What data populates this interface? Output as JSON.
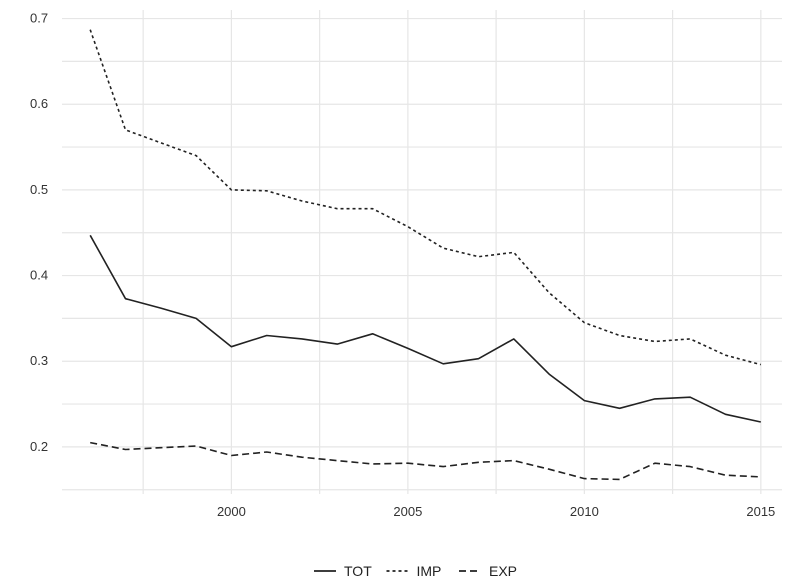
{
  "chart_data": {
    "type": "line",
    "title": "",
    "xlabel": "",
    "ylabel": "",
    "x": [
      1996,
      1997,
      1998,
      1999,
      2000,
      2001,
      2002,
      2003,
      2004,
      2005,
      2006,
      2007,
      2008,
      2009,
      2010,
      2011,
      2012,
      2013,
      2014,
      2015
    ],
    "series": [
      {
        "name": "TOT",
        "style": "solid",
        "values": [
          0.447,
          0.373,
          0.362,
          0.35,
          0.317,
          0.33,
          0.326,
          0.32,
          0.332,
          0.315,
          0.297,
          0.303,
          0.326,
          0.285,
          0.254,
          0.245,
          0.256,
          0.258,
          0.238,
          0.229
        ]
      },
      {
        "name": "IMP",
        "style": "dotted",
        "values": [
          0.687,
          0.57,
          0.555,
          0.54,
          0.5,
          0.499,
          0.487,
          0.478,
          0.478,
          0.457,
          0.432,
          0.422,
          0.427,
          0.38,
          0.345,
          0.33,
          0.323,
          0.326,
          0.307,
          0.296
        ]
      },
      {
        "name": "EXP",
        "style": "dashed",
        "values": [
          0.205,
          0.197,
          0.199,
          0.201,
          0.19,
          0.194,
          0.188,
          0.184,
          0.18,
          0.181,
          0.177,
          0.182,
          0.184,
          0.174,
          0.163,
          0.162,
          0.181,
          0.177,
          0.167,
          0.165
        ]
      }
    ],
    "xlim": [
      1995.2,
      2015.6
    ],
    "ylim": [
      0.145,
      0.71
    ],
    "x_ticks": [
      2000,
      2005,
      2010,
      2015
    ],
    "x_tick_labels": [
      "2000",
      "2005",
      "2010",
      "2015"
    ],
    "y_ticks": [
      0.2,
      0.3,
      0.4,
      0.5,
      0.6,
      0.7
    ],
    "y_tick_labels": [
      "0.2",
      "0.3",
      "0.4",
      "0.5",
      "0.6",
      "0.7"
    ],
    "grid": true,
    "legend": "bottom-center"
  }
}
